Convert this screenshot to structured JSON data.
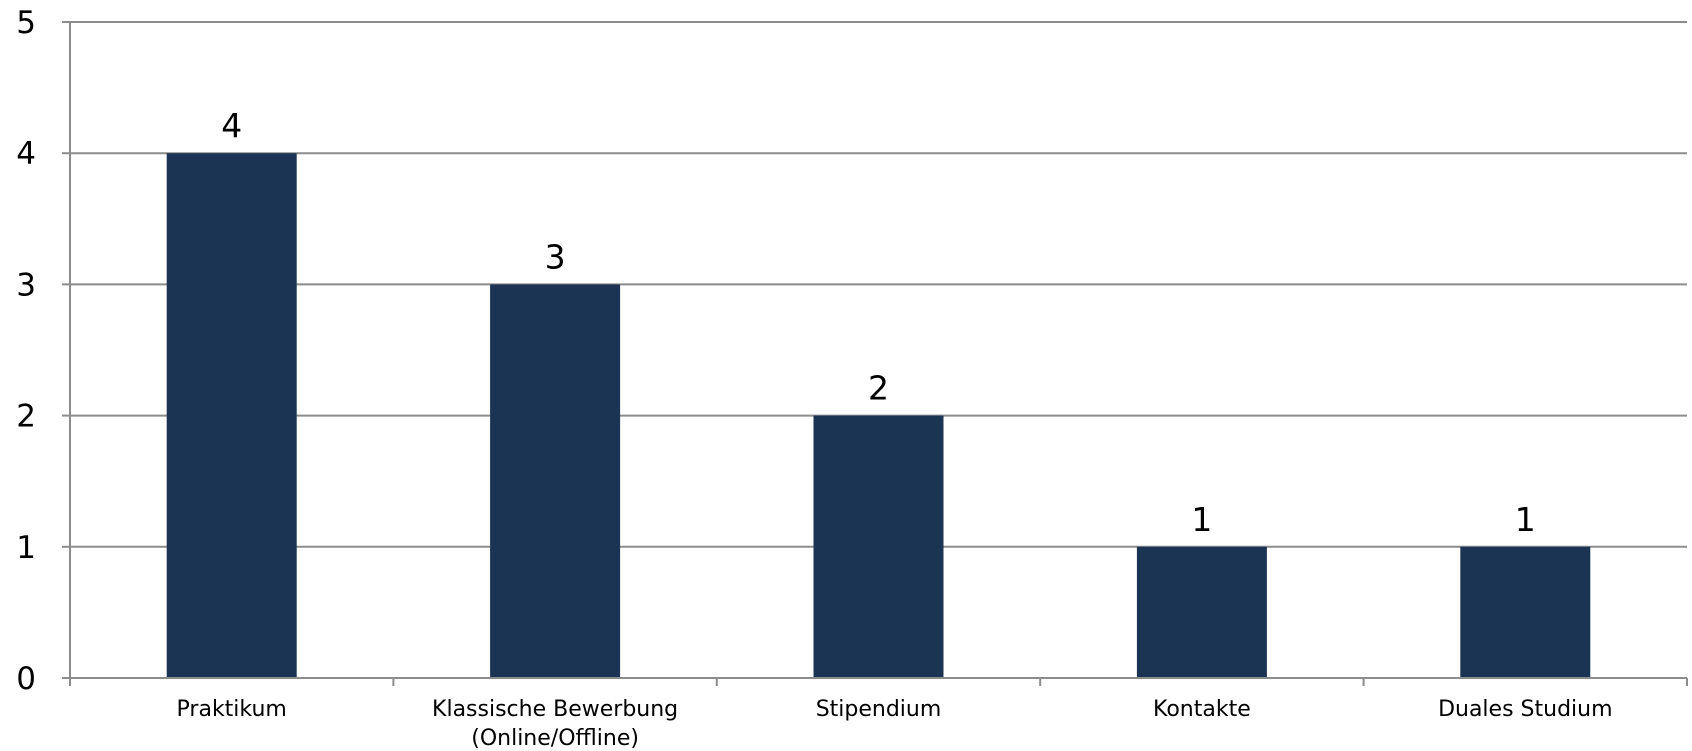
{
  "chart_data": {
    "type": "bar",
    "categories": [
      [
        "Praktikum"
      ],
      [
        "Klassische Bewerbung",
        "(Online/Offline)"
      ],
      [
        "Stipendium"
      ],
      [
        "Kontakte"
      ],
      [
        "Duales Studium"
      ]
    ],
    "values": [
      4,
      3,
      2,
      1,
      1
    ],
    "data_labels": [
      "4",
      "3",
      "2",
      "1",
      "1"
    ],
    "y_ticks": [
      "0",
      "1",
      "2",
      "3",
      "4",
      "5"
    ],
    "ylim": [
      0,
      5
    ],
    "grid": true,
    "legend": "none",
    "title": "",
    "xlabel": "",
    "ylabel": "",
    "colors": {
      "bar": "#1b3453",
      "grid": "#8c8c8c",
      "axis": "#8c8c8c"
    }
  }
}
